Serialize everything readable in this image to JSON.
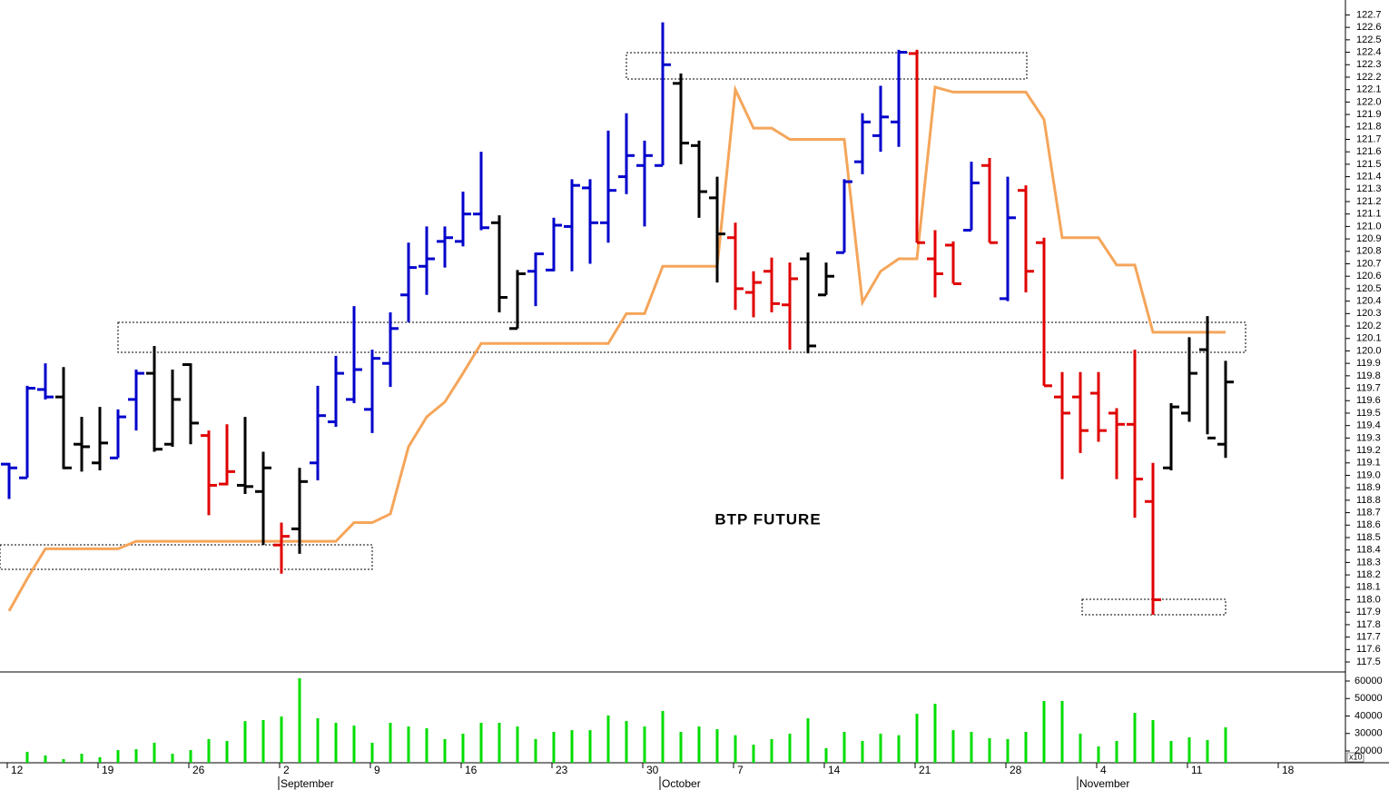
{
  "chart_data": [
    {
      "type": "ohlc",
      "title": "BTP FUTURE",
      "categories": [
        "12",
        null,
        null,
        null,
        null,
        "19",
        null,
        null,
        null,
        null,
        "26",
        null,
        null,
        null,
        null,
        "2",
        null,
        null,
        null,
        null,
        "9",
        null,
        null,
        null,
        null,
        "16",
        null,
        null,
        null,
        null,
        "23",
        null,
        null,
        null,
        null,
        "30",
        null,
        null,
        null,
        null,
        "7",
        null,
        null,
        null,
        null,
        "14",
        null,
        null,
        null,
        null,
        "21",
        null,
        null,
        null,
        null,
        "28",
        null,
        null,
        null,
        null,
        "4",
        null,
        null,
        null,
        null,
        "11",
        null,
        null,
        null,
        null,
        "18"
      ],
      "month_labels": [
        null,
        null,
        null,
        null,
        null,
        null,
        null,
        null,
        null,
        null,
        null,
        null,
        null,
        null,
        null,
        "September",
        null,
        null,
        null,
        null,
        null,
        null,
        null,
        null,
        null,
        null,
        null,
        null,
        null,
        null,
        null,
        null,
        null,
        null,
        null,
        null,
        "October",
        null,
        null,
        null,
        null,
        null,
        null,
        null,
        null,
        null,
        null,
        null,
        null,
        null,
        null,
        null,
        null,
        null,
        null,
        null,
        null,
        null,
        null,
        "November",
        null,
        null,
        null,
        null,
        null,
        null,
        null,
        null,
        null,
        null,
        null
      ],
      "open": [
        119.09,
        118.98,
        119.69,
        119.63,
        119.25,
        119.1,
        119.14,
        119.61,
        119.82,
        119.25,
        119.89,
        119.32,
        118.93,
        118.92,
        118.87,
        118.44,
        118.57,
        119.1,
        119.43,
        119.61,
        119.53,
        119.9,
        120.45,
        120.68,
        120.88,
        120.88,
        121.1,
        121.03,
        120.18,
        120.64,
        120.65,
        121.0,
        121.31,
        121.03,
        121.4,
        121.49,
        121.49,
        122.15,
        121.65,
        121.23,
        120.91,
        120.47,
        120.64,
        120.37,
        120.74,
        120.45,
        120.79,
        121.52,
        121.73,
        121.84,
        122.39,
        120.74,
        120.85,
        120.97,
        121.49,
        120.42,
        121.29,
        120.87,
        119.63,
        119.63,
        119.66,
        119.5,
        119.41,
        118.79,
        119.06,
        119.5,
        120.01,
        119.25,
        null,
        null,
        null
      ],
      "high": [
        119.1,
        119.72,
        119.9,
        119.87,
        119.47,
        119.55,
        119.53,
        119.85,
        120.04,
        119.85,
        119.9,
        119.36,
        119.41,
        119.47,
        119.19,
        118.62,
        119.06,
        119.72,
        119.96,
        120.36,
        120.01,
        120.31,
        120.87,
        121.0,
        121.0,
        121.28,
        121.6,
        121.09,
        120.65,
        120.79,
        121.07,
        121.38,
        121.38,
        121.77,
        121.91,
        121.69,
        122.64,
        122.23,
        121.69,
        121.4,
        121.03,
        120.64,
        120.75,
        120.71,
        120.79,
        120.71,
        121.38,
        121.91,
        122.13,
        122.42,
        122.42,
        120.97,
        120.88,
        121.52,
        121.55,
        121.4,
        121.33,
        120.91,
        119.83,
        119.83,
        119.83,
        119.54,
        120.01,
        119.1,
        119.58,
        120.11,
        120.28,
        119.92,
        null,
        null,
        null
      ],
      "low": [
        118.81,
        118.98,
        119.61,
        119.05,
        119.03,
        119.04,
        119.14,
        119.36,
        119.19,
        119.23,
        119.25,
        118.68,
        118.92,
        118.85,
        118.44,
        118.21,
        118.37,
        118.96,
        119.39,
        119.58,
        119.34,
        119.71,
        120.23,
        120.45,
        120.67,
        120.84,
        120.97,
        120.31,
        120.18,
        120.36,
        120.64,
        120.64,
        120.7,
        120.87,
        121.26,
        121.0,
        121.49,
        121.5,
        121.07,
        120.55,
        120.33,
        120.27,
        120.31,
        120.01,
        119.98,
        120.45,
        120.79,
        121.42,
        121.6,
        121.64,
        120.87,
        120.43,
        120.54,
        120.97,
        120.87,
        120.4,
        120.47,
        119.72,
        118.97,
        119.18,
        119.27,
        118.97,
        118.66,
        117.88,
        119.04,
        119.43,
        119.33,
        119.14,
        null,
        null,
        null
      ],
      "close": [
        119.06,
        119.7,
        119.63,
        119.06,
        119.23,
        119.26,
        119.47,
        119.82,
        119.21,
        119.61,
        119.42,
        118.92,
        119.03,
        118.91,
        119.06,
        118.51,
        118.95,
        119.48,
        119.82,
        119.85,
        119.94,
        120.18,
        120.67,
        120.74,
        120.91,
        121.1,
        120.99,
        120.43,
        120.62,
        120.78,
        121.01,
        121.33,
        121.03,
        121.29,
        121.57,
        121.57,
        122.3,
        121.67,
        121.28,
        120.94,
        120.5,
        120.55,
        120.38,
        120.58,
        120.04,
        120.6,
        121.36,
        121.84,
        121.88,
        122.4,
        120.87,
        120.62,
        120.54,
        121.35,
        120.87,
        121.07,
        120.64,
        119.72,
        119.5,
        119.36,
        119.36,
        119.41,
        118.97,
        118.0,
        119.55,
        119.82,
        119.3,
        119.75,
        null,
        null,
        null
      ],
      "colors": [
        "#0000cc",
        "#0000cc",
        "#0000cc",
        "#000000",
        "#000000",
        "#000000",
        "#0000cc",
        "#0000cc",
        "#000000",
        "#000000",
        "#000000",
        "#e00000",
        "#e00000",
        "#000000",
        "#000000",
        "#e00000",
        "#000000",
        "#0000cc",
        "#0000cc",
        "#0000cc",
        "#0000cc",
        "#0000cc",
        "#0000cc",
        "#0000cc",
        "#0000cc",
        "#0000cc",
        "#0000cc",
        "#000000",
        "#000000",
        "#0000cc",
        "#0000cc",
        "#0000cc",
        "#0000cc",
        "#0000cc",
        "#0000cc",
        "#0000cc",
        "#0000cc",
        "#000000",
        "#000000",
        "#000000",
        "#e00000",
        "#e00000",
        "#e00000",
        "#e00000",
        "#000000",
        "#000000",
        "#0000cc",
        "#0000cc",
        "#0000cc",
        "#0000cc",
        "#e00000",
        "#e00000",
        "#e00000",
        "#0000cc",
        "#e00000",
        "#0000cc",
        "#e00000",
        "#e00000",
        "#e00000",
        "#e00000",
        "#e00000",
        "#e00000",
        "#e00000",
        "#e00000",
        "#000000",
        "#000000",
        "#000000",
        "#000000",
        null,
        null,
        null
      ],
      "line": {
        "color": "#f5a55a",
        "values": [
          117.91,
          118.17,
          118.41,
          118.41,
          118.41,
          118.41,
          118.41,
          118.47,
          118.47,
          118.47,
          118.47,
          118.47,
          118.47,
          118.47,
          118.47,
          118.47,
          118.47,
          118.47,
          118.47,
          118.62,
          118.62,
          118.69,
          119.23,
          119.47,
          119.59,
          119.82,
          120.06,
          120.06,
          120.06,
          120.06,
          120.06,
          120.06,
          120.06,
          120.06,
          120.3,
          120.3,
          120.68,
          120.68,
          120.68,
          120.68,
          122.1,
          121.79,
          121.79,
          121.7,
          121.7,
          121.7,
          121.7,
          120.39,
          120.64,
          120.74,
          120.74,
          122.12,
          122.08,
          122.08,
          122.08,
          122.08,
          122.08,
          121.86,
          120.91,
          120.91,
          120.91,
          120.69,
          120.69,
          120.15,
          120.15,
          120.15,
          120.15,
          120.15,
          null,
          null,
          null
        ]
      },
      "ylim": [
        117.42,
        122.82
      ],
      "yticks": [
        117.5,
        117.6,
        117.7,
        117.8,
        117.9,
        {
          "value": 118,
          "label": "118.0"
        },
        118.1,
        118.2,
        118.3,
        118.4,
        118.5,
        118.6,
        118.7,
        118.8,
        118.9,
        {
          "value": 119,
          "label": "119.0"
        },
        119.1,
        119.2,
        119.3,
        119.4,
        119.5,
        119.6,
        119.7,
        119.8,
        119.9,
        {
          "value": 120,
          "label": "120.0"
        },
        120.1,
        120.2,
        120.3,
        120.4,
        120.5,
        120.6,
        120.7,
        120.8,
        120.9,
        {
          "value": 121,
          "label": "121.0"
        },
        121.1,
        121.2,
        121.3,
        121.4,
        121.5,
        121.6,
        121.7,
        121.8,
        121.9,
        {
          "value": 122,
          "label": "122.0"
        },
        122.1,
        122.2,
        122.3,
        122.4,
        122.5,
        122.6,
        122.7
      ],
      "grid": false
    },
    {
      "type": "bar",
      "values": [
        null,
        19500,
        17400,
        15300,
        18400,
        16400,
        20500,
        21000,
        24700,
        18400,
        20500,
        26800,
        25700,
        37100,
        37700,
        39700,
        61600,
        38700,
        36100,
        34500,
        24700,
        36100,
        34000,
        33000,
        26800,
        29900,
        36100,
        36100,
        34000,
        26800,
        30900,
        31900,
        31900,
        40300,
        37100,
        34000,
        42900,
        30900,
        34000,
        32500,
        29000,
        23600,
        26800,
        29900,
        38700,
        21600,
        30900,
        25700,
        29900,
        29000,
        41300,
        47000,
        31900,
        30900,
        27300,
        26800,
        30900,
        48600,
        48600,
        29900,
        22600,
        25700,
        41800,
        37700,
        25700,
        27800,
        26200,
        33500,
        null,
        null,
        null
      ],
      "color": "#00dd00",
      "ylim": [
        13250,
        65200
      ],
      "yticks": [
        20000,
        30000,
        40000,
        50000,
        60000
      ],
      "unit_label": "x10",
      "grid": false
    }
  ]
}
